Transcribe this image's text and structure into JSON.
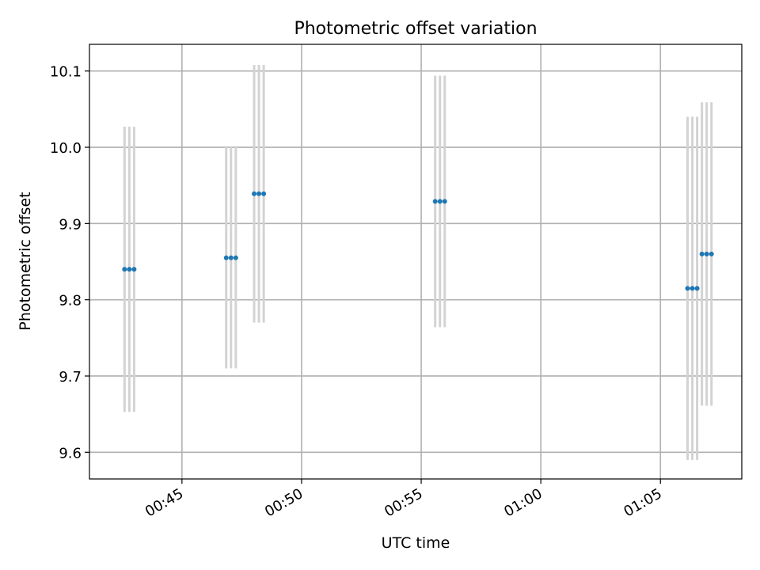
{
  "chart_data": {
    "type": "scatter",
    "title": "Photometric offset variation",
    "xlabel": "UTC time",
    "ylabel": "Photometric offset",
    "x_ticks": [
      "00:45",
      "00:50",
      "00:55",
      "01:00",
      "01:05"
    ],
    "y_ticks": [
      "9.6",
      "9.7",
      "9.8",
      "9.9",
      "10.0",
      "10.1"
    ],
    "xlim": [
      "00:41:08",
      "01:08:24"
    ],
    "ylim": [
      9.565,
      10.135
    ],
    "grid": true,
    "colors": {
      "points": "#1f77b4",
      "errorbars": "#d3d3d3",
      "grid": "#b0b0b0"
    },
    "points": [
      {
        "x": "00:42:36",
        "y": 9.84,
        "err": 0.187
      },
      {
        "x": "00:42:48",
        "y": 9.84,
        "err": 0.187
      },
      {
        "x": "00:43:00",
        "y": 9.84,
        "err": 0.187
      },
      {
        "x": "00:46:51",
        "y": 9.855,
        "err": 0.145
      },
      {
        "x": "00:47:03",
        "y": 9.855,
        "err": 0.145
      },
      {
        "x": "00:47:15",
        "y": 9.855,
        "err": 0.145
      },
      {
        "x": "00:48:01",
        "y": 9.939,
        "err": 0.169
      },
      {
        "x": "00:48:13",
        "y": 9.939,
        "err": 0.169
      },
      {
        "x": "00:48:25",
        "y": 9.939,
        "err": 0.169
      },
      {
        "x": "00:55:35",
        "y": 9.929,
        "err": 0.165
      },
      {
        "x": "00:55:47",
        "y": 9.929,
        "err": 0.165
      },
      {
        "x": "00:55:59",
        "y": 9.929,
        "err": 0.165
      },
      {
        "x": "01:06:08",
        "y": 9.815,
        "err": 0.225
      },
      {
        "x": "01:06:20",
        "y": 9.815,
        "err": 0.225
      },
      {
        "x": "01:06:32",
        "y": 9.815,
        "err": 0.225
      },
      {
        "x": "01:06:44",
        "y": 9.86,
        "err": 0.199
      },
      {
        "x": "01:06:56",
        "y": 9.86,
        "err": 0.199
      },
      {
        "x": "01:07:08",
        "y": 9.86,
        "err": 0.199
      }
    ]
  }
}
